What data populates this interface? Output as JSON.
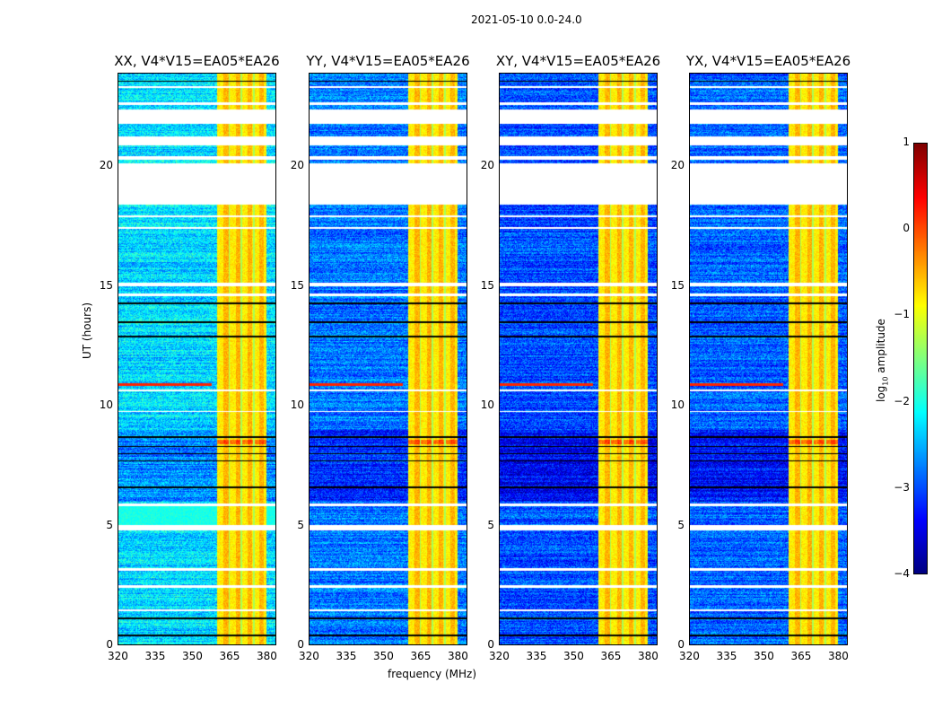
{
  "chart_data": {
    "type": "heatmap",
    "suptitle": "2021-05-10 0.0-24.0",
    "panels": [
      {
        "title": "XX, V4*V15=EA05*EA26",
        "pol": "XX",
        "background": -2.3
      },
      {
        "title": "YY, V4*V15=EA05*EA26",
        "pol": "YY",
        "background": -2.8
      },
      {
        "title": "XY, V4*V15=EA05*EA26",
        "pol": "XY",
        "background": -3.0
      },
      {
        "title": "YX, V4*V15=EA05*EA26",
        "pol": "YX",
        "background": -2.9
      }
    ],
    "xlabel": "frequency (MHz)",
    "ylabel": "UT (hours)",
    "xlim": [
      320,
      384
    ],
    "ylim": [
      0,
      23.9
    ],
    "xticks": [
      320,
      335,
      350,
      365,
      380
    ],
    "yticks": [
      0,
      5,
      10,
      15,
      20
    ],
    "bright_band_mhz": [
      360,
      380
    ],
    "flagged_channels_mhz": [
      365,
      370,
      375
    ],
    "flagged_time_ranges_hours": [
      [
        18.45,
        20.15
      ],
      [
        20.9,
        21.3
      ],
      [
        21.8,
        22.4
      ],
      [
        20.3,
        20.45
      ],
      [
        22.6,
        22.7
      ],
      [
        23.3,
        23.4
      ],
      [
        17.4,
        17.5
      ],
      [
        17.9,
        18.0
      ],
      [
        15.0,
        15.15
      ],
      [
        14.6,
        14.7
      ],
      [
        10.6,
        10.7
      ],
      [
        9.75,
        9.8
      ],
      [
        5.8,
        5.9
      ],
      [
        4.8,
        5.0
      ],
      [
        3.1,
        3.2
      ],
      [
        2.4,
        2.5
      ],
      [
        1.4,
        1.5
      ]
    ],
    "zero_time_rows_hours": [
      23.6,
      14.3,
      13.5,
      12.9,
      8.7,
      8.3,
      8.0,
      7.7,
      6.6,
      1.1,
      0.4
    ],
    "colorbar": {
      "label_main": "log",
      "label_sub": "10",
      "label_rest": " amplitude",
      "range": [
        -4,
        1
      ],
      "ticks": [
        1,
        0,
        -1,
        -2,
        -3,
        -4
      ],
      "colormap": "jet"
    }
  }
}
